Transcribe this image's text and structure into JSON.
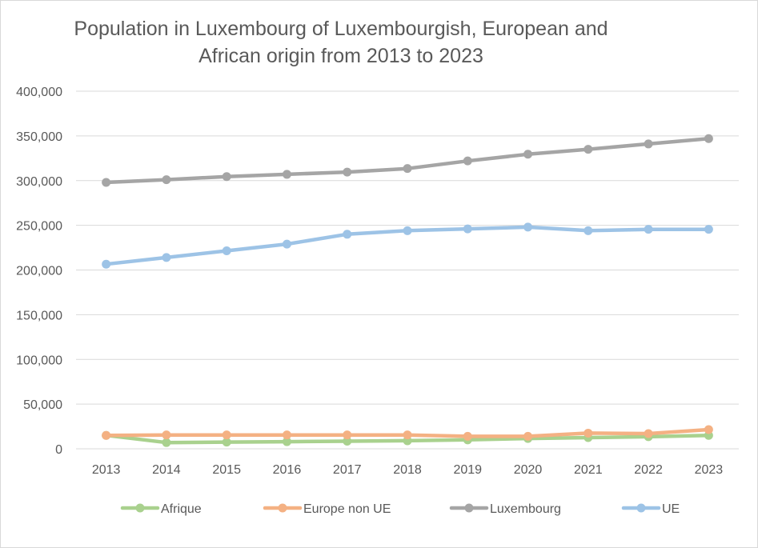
{
  "chart_data": {
    "type": "line",
    "title_lines": [
      "Population in Luxembourg of Luxembourgish, European and",
      "African origin from 2013 to 2023"
    ],
    "xlabel": "",
    "ylabel": "",
    "categories": [
      "2013",
      "2014",
      "2015",
      "2016",
      "2017",
      "2018",
      "2019",
      "2020",
      "2021",
      "2022",
      "2023"
    ],
    "ylim": [
      0,
      400000
    ],
    "yticks": [
      0,
      50000,
      100000,
      150000,
      200000,
      250000,
      300000,
      350000,
      400000
    ],
    "ytick_labels": [
      "0",
      "50,000",
      "100,000",
      "150,000",
      "200,000",
      "250,000",
      "300,000",
      "350,000",
      "400,000"
    ],
    "grid": true,
    "legend_position": "bottom",
    "series": [
      {
        "name": "Afrique",
        "color": "#a9d18e",
        "values": [
          15000,
          7000,
          7500,
          8000,
          8500,
          9000,
          10000,
          11500,
          12500,
          13500,
          15000
        ]
      },
      {
        "name": "Europe non UE",
        "color": "#f4b183",
        "values": [
          15000,
          15500,
          15500,
          15500,
          15500,
          15500,
          14000,
          14000,
          17500,
          17000,
          21500
        ]
      },
      {
        "name": "Luxembourg",
        "color": "#a5a5a5",
        "values": [
          298000,
          301000,
          304500,
          307000,
          309500,
          313500,
          322000,
          329500,
          335000,
          341000,
          347000
        ]
      },
      {
        "name": "UE",
        "color": "#9dc3e6",
        "values": [
          206500,
          214000,
          221500,
          229000,
          240000,
          244000,
          246000,
          248000,
          244000,
          245500,
          245500
        ]
      }
    ]
  }
}
